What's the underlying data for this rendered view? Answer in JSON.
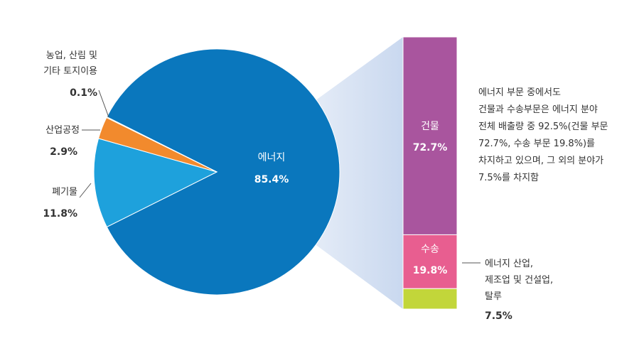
{
  "chart_data": [
    {
      "type": "pie",
      "slices": [
        {
          "label": "에너지",
          "value": 85.4,
          "value_label": "85.4%",
          "color": "#0a77bd"
        },
        {
          "label": "폐기물",
          "value": 11.8,
          "value_label": "11.8%",
          "color": "#1ea1dc"
        },
        {
          "label": "산업공정",
          "value": 2.9,
          "value_label": "2.9%",
          "color": "#f28a2d"
        },
        {
          "label_lines": [
            "농업, 산림 및",
            "기타 토지이용"
          ],
          "value": 0.1,
          "value_label": "0.1%",
          "color": "#f2d21a"
        }
      ]
    },
    {
      "type": "bar",
      "stacked": true,
      "segments": [
        {
          "label": "건물",
          "value": 72.7,
          "value_label": "72.7%",
          "color": "#a9559e"
        },
        {
          "label": "수송",
          "value": 19.8,
          "value_label": "19.8%",
          "color": "#e85e90"
        },
        {
          "label_lines": [
            "에너지 산업,",
            "제조업 및 건설업,",
            "탈루"
          ],
          "value": 7.5,
          "value_label": "7.5%",
          "color": "#c2d63a"
        }
      ]
    }
  ],
  "annotation": {
    "lines": [
      "에너지 부문 중에서도",
      "건물과 수송부문은 에너지 분야",
      "전체 배출량 중 92.5%(건물 부문",
      "72.7%, 수송 부문 19.8%)를",
      "차지하고 있으며, 그 외의 분야가",
      "7.5%를 차지함"
    ]
  }
}
